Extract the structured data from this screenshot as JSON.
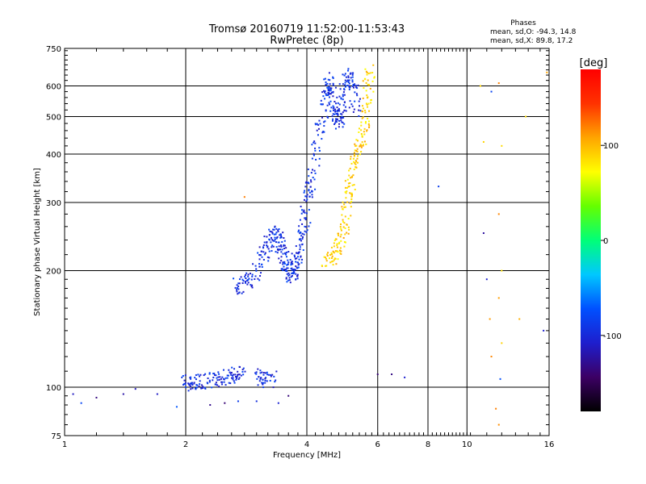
{
  "chart_data": {
    "type": "scatter",
    "title": "Tromsø 20160719 11:52:00-11:53:43",
    "subtitle": "RwPretec (8p)",
    "xlabel": "Frequency [MHz]",
    "ylabel": "Stationary phase Virtual Height [km]",
    "xscale": "log",
    "yscale": "log",
    "xlim": [
      1,
      16
    ],
    "ylim": [
      75,
      750
    ],
    "x_ticks": [
      1,
      2,
      4,
      6,
      8,
      10,
      16
    ],
    "y_ticks": [
      75,
      100,
      200,
      300,
      400,
      500,
      600,
      750
    ],
    "grid": true,
    "legend": {
      "heading": "Phases",
      "lines": [
        "mean, sd,O: -94.3, 14.8",
        "mean, sd,X:  89.8, 17.2"
      ],
      "position": "top-right"
    },
    "colorbar": {
      "label": "[deg]",
      "min": -180,
      "max": 180,
      "ticks": [
        100,
        0,
        -100
      ],
      "colors": [
        "#000000",
        "#3c0064",
        "#1e1ecd",
        "#0050ff",
        "#00c8ff",
        "#00ff78",
        "#64ff00",
        "#ffff00",
        "#ffa500",
        "#ff3200",
        "#ff0000"
      ]
    },
    "series": [
      {
        "mode": "O",
        "phase_mean": -94.3,
        "traces": [
          {
            "points": [
              [
                2.0,
                102
              ],
              [
                2.05,
                103
              ],
              [
                2.1,
                103.5
              ],
              [
                2.2,
                104
              ],
              [
                2.3,
                104
              ],
              [
                2.4,
                105
              ],
              [
                2.5,
                106
              ],
              [
                2.6,
                107
              ],
              [
                2.7,
                108
              ],
              [
                2.8,
                110
              ]
            ]
          },
          {
            "points": [
              [
                3.0,
                108
              ],
              [
                3.1,
                106
              ],
              [
                3.2,
                105
              ],
              [
                3.3,
                106
              ]
            ]
          },
          {
            "points": [
              [
                2.65,
                185
              ],
              [
                2.75,
                182
              ],
              [
                2.85,
                188
              ],
              [
                2.95,
                195
              ],
              [
                3.05,
                210
              ],
              [
                3.15,
                225
              ],
              [
                3.2,
                235
              ],
              [
                3.3,
                245
              ],
              [
                3.35,
                250
              ],
              [
                3.4,
                240
              ],
              [
                3.45,
                230
              ],
              [
                3.5,
                220
              ],
              [
                3.55,
                210
              ],
              [
                3.6,
                200
              ],
              [
                3.65,
                195
              ],
              [
                3.7,
                198
              ],
              [
                3.75,
                205
              ],
              [
                3.8,
                215
              ],
              [
                3.85,
                230
              ],
              [
                3.9,
                250
              ],
              [
                3.95,
                270
              ],
              [
                4.0,
                300
              ],
              [
                4.05,
                320
              ],
              [
                4.1,
                340
              ],
              [
                4.2,
                400
              ],
              [
                4.3,
                460
              ],
              [
                4.4,
                520
              ],
              [
                4.5,
                580
              ],
              [
                4.55,
                620
              ],
              [
                4.6,
                600
              ],
              [
                4.65,
                560
              ],
              [
                4.7,
                520
              ],
              [
                4.75,
                500
              ],
              [
                4.8,
                480
              ],
              [
                4.85,
                500
              ],
              [
                4.9,
                550
              ],
              [
                5.0,
                600
              ],
              [
                5.1,
                640
              ],
              [
                5.2,
                620
              ],
              [
                5.25,
                560
              ],
              [
                5.3,
                500
              ]
            ]
          }
        ]
      },
      {
        "mode": "X",
        "phase_mean": 89.8,
        "traces": [
          {
            "points": [
              [
                4.45,
                210
              ],
              [
                4.6,
                213
              ],
              [
                4.7,
                220
              ],
              [
                4.8,
                230
              ],
              [
                4.9,
                248
              ],
              [
                5.0,
                265
              ],
              [
                5.05,
                290
              ],
              [
                5.1,
                320
              ],
              [
                5.15,
                350
              ],
              [
                5.25,
                380
              ],
              [
                5.35,
                400
              ],
              [
                5.45,
                420
              ],
              [
                5.55,
                460
              ],
              [
                5.6,
                500
              ],
              [
                5.65,
                560
              ],
              [
                5.7,
                620
              ],
              [
                5.75,
                650
              ]
            ]
          }
        ]
      }
    ],
    "sparse": {
      "low": [
        [
          1.05,
          96
        ],
        [
          1.1,
          91
        ],
        [
          1.2,
          94
        ],
        [
          1.4,
          96
        ],
        [
          1.5,
          99
        ],
        [
          1.7,
          96
        ],
        [
          1.9,
          89
        ],
        [
          2.3,
          90
        ],
        [
          2.5,
          91
        ],
        [
          2.7,
          92
        ],
        [
          3.0,
          92
        ],
        [
          3.4,
          91
        ],
        [
          3.6,
          95
        ],
        [
          6.0,
          108
        ],
        [
          6.5,
          108
        ],
        [
          7.0,
          106
        ]
      ],
      "high": [
        [
          10.8,
          600
        ],
        [
          11.5,
          580
        ],
        [
          12.0,
          610
        ],
        [
          12.2,
          420
        ],
        [
          12.0,
          280
        ],
        [
          12.2,
          200
        ],
        [
          12.0,
          170
        ],
        [
          12.2,
          130
        ],
        [
          12.1,
          105
        ],
        [
          11.8,
          88
        ],
        [
          12.0,
          80
        ],
        [
          11.0,
          430
        ],
        [
          11.0,
          250
        ],
        [
          11.2,
          190
        ],
        [
          11.4,
          150
        ],
        [
          11.5,
          120
        ],
        [
          13.5,
          150
        ],
        [
          15.5,
          140
        ],
        [
          14.0,
          500
        ],
        [
          15.8,
          650
        ],
        [
          8.5,
          330
        ],
        [
          2.8,
          310
        ]
      ]
    }
  }
}
